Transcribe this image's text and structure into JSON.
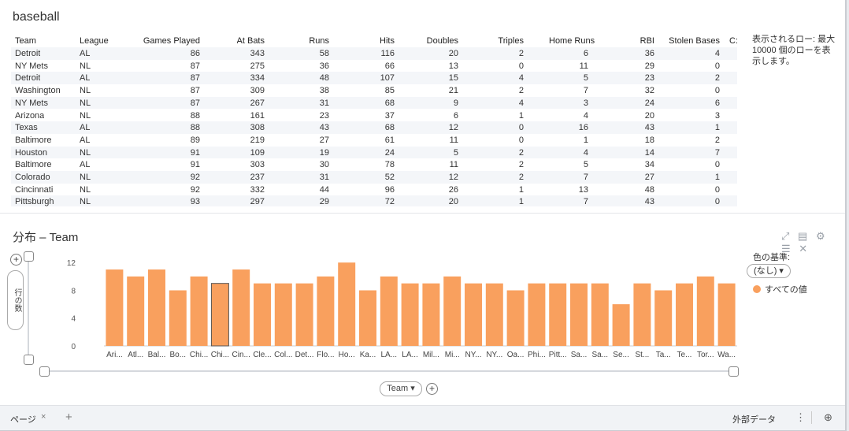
{
  "title": "baseball",
  "table": {
    "columns": [
      "Team",
      "League",
      "Games Played",
      "At Bats",
      "Runs",
      "Hits",
      "Doubles",
      "Triples",
      "Home Runs",
      "RBI",
      "Stolen Bases",
      "C:"
    ],
    "rows": [
      [
        "Detroit",
        "AL",
        "86",
        "343",
        "58",
        "116",
        "20",
        "2",
        "6",
        "36",
        "4"
      ],
      [
        "NY Mets",
        "NL",
        "87",
        "275",
        "36",
        "66",
        "13",
        "0",
        "11",
        "29",
        "0"
      ],
      [
        "Detroit",
        "AL",
        "87",
        "334",
        "48",
        "107",
        "15",
        "4",
        "5",
        "23",
        "2"
      ],
      [
        "Washington",
        "NL",
        "87",
        "309",
        "38",
        "85",
        "21",
        "2",
        "7",
        "32",
        "0"
      ],
      [
        "NY Mets",
        "NL",
        "87",
        "267",
        "31",
        "68",
        "9",
        "4",
        "3",
        "24",
        "6"
      ],
      [
        "Arizona",
        "NL",
        "88",
        "161",
        "23",
        "37",
        "6",
        "1",
        "4",
        "20",
        "3"
      ],
      [
        "Texas",
        "AL",
        "88",
        "308",
        "43",
        "68",
        "12",
        "0",
        "16",
        "43",
        "1"
      ],
      [
        "Baltimore",
        "AL",
        "89",
        "219",
        "27",
        "61",
        "11",
        "0",
        "1",
        "18",
        "2"
      ],
      [
        "Houston",
        "NL",
        "91",
        "109",
        "19",
        "24",
        "5",
        "2",
        "4",
        "14",
        "7"
      ],
      [
        "Baltimore",
        "AL",
        "91",
        "303",
        "30",
        "78",
        "11",
        "2",
        "5",
        "34",
        "0"
      ],
      [
        "Colorado",
        "NL",
        "92",
        "237",
        "31",
        "52",
        "12",
        "2",
        "7",
        "27",
        "1"
      ],
      [
        "Cincinnati",
        "NL",
        "92",
        "332",
        "44",
        "96",
        "26",
        "1",
        "13",
        "48",
        "0"
      ],
      [
        "Pittsburgh",
        "NL",
        "93",
        "297",
        "29",
        "72",
        "20",
        "1",
        "7",
        "43",
        "0"
      ]
    ]
  },
  "side_note": "表示されるロー: 最大 10000 個のローを表示します。",
  "chart_title": "分布 – Team",
  "chart_data": {
    "type": "bar",
    "categories": [
      "Ari...",
      "Atl...",
      "Bal...",
      "Bo...",
      "Chi...",
      "Chi...",
      "Cin...",
      "Cle...",
      "Col...",
      "Det...",
      "Flo...",
      "Ho...",
      "Ka...",
      "LA...",
      "LA...",
      "Mil...",
      "Mi...",
      "NY...",
      "NY...",
      "Oa...",
      "Phi...",
      "Pitt...",
      "Sa...",
      "Sa...",
      "Se...",
      "St...",
      "Ta...",
      "Te...",
      "Tor...",
      "Wa..."
    ],
    "values": [
      11,
      10,
      11,
      8,
      10,
      9,
      11,
      9,
      9,
      9,
      10,
      12,
      8,
      10,
      9,
      9,
      10,
      9,
      9,
      8,
      9,
      9,
      9,
      9,
      6,
      9,
      8,
      9,
      10,
      9
    ],
    "selected_index": 5,
    "yticks": [
      "0",
      "4",
      "8",
      "12"
    ],
    "ylim": [
      0,
      13.5
    ],
    "bar_color": "#f9a05e",
    "xlabel": "Team",
    "ylabel": "行の数"
  },
  "legend": {
    "title": "色の基準:",
    "selector": "(なし)",
    "item": "すべての値"
  },
  "footer": {
    "tab": "ページ",
    "tab_close": "×",
    "add": "+",
    "external": "外部データ",
    "menu": "⋮",
    "globe": "⊕"
  },
  "tools": {
    "expand": "⤢",
    "export": "▤",
    "settings": "⚙",
    "menu": "☰",
    "close": "✕"
  },
  "buttons": {
    "plus": "+",
    "xaxis_arrow": "▾",
    "selector_arrow": "▾"
  }
}
